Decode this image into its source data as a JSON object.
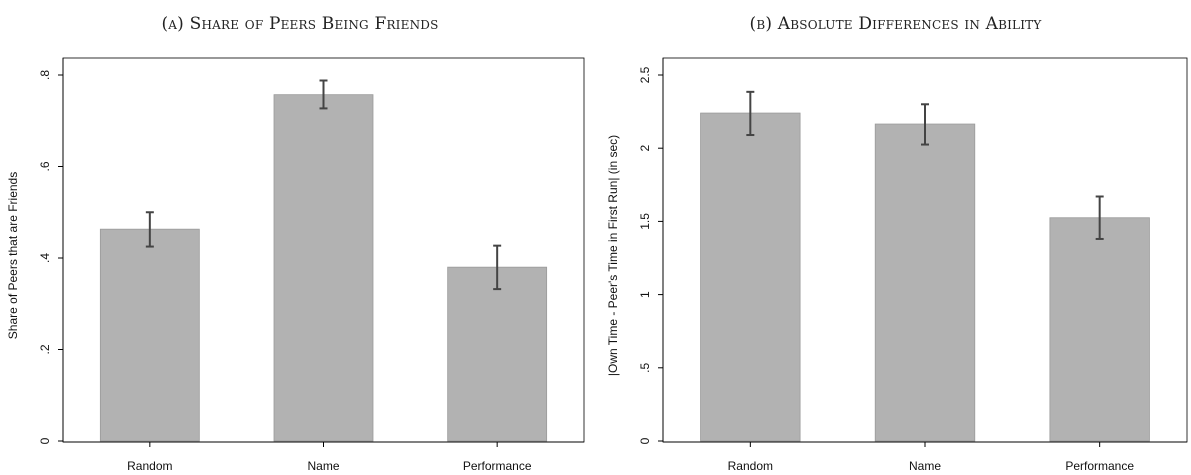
{
  "panels": {
    "a": {
      "title": "(a) Share of Peers Being Friends"
    },
    "b": {
      "title": "(b) Absolute Differences in Ability"
    }
  },
  "colors": {
    "bar": "#b2b2b2",
    "bar_edge": "#9a9a9a",
    "error_bar": "#444444",
    "axis": "#000000"
  },
  "chart_data": [
    {
      "type": "bar",
      "title": "(a) Share of Peers Being Friends",
      "categories": [
        "Random",
        "Name",
        "Performance"
      ],
      "series": [
        {
          "values": [
            0.463,
            0.757,
            0.38
          ],
          "ci_low": [
            0.425,
            0.727,
            0.332
          ],
          "ci_high": [
            0.5,
            0.788,
            0.427
          ]
        }
      ],
      "xlabel": "",
      "ylabel": "Share of Peers that are Friends",
      "ylim": [
        0,
        0.8
      ],
      "yticks": [
        0,
        0.2,
        0.4,
        0.6,
        0.8
      ],
      "ytick_labels": [
        "0",
        ".2",
        ".4",
        ".6",
        ".8"
      ],
      "grid": false,
      "error_bars": true
    },
    {
      "type": "bar",
      "title": "(b) Absolute Differences in Ability",
      "categories": [
        "Random",
        "Name",
        "Performance"
      ],
      "series": [
        {
          "values": [
            2.24,
            2.165,
            1.525
          ],
          "ci_low": [
            2.09,
            2.025,
            1.38
          ],
          "ci_high": [
            2.385,
            2.3,
            1.67
          ]
        }
      ],
      "xlabel": "",
      "ylabel": "|Own Time - Peer's Time in First Run| (in sec)",
      "ylim": [
        0,
        2.5
      ],
      "yticks": [
        0,
        0.5,
        1,
        1.5,
        2,
        2.5
      ],
      "ytick_labels": [
        "0",
        ".5",
        "1",
        "1.5",
        "2",
        "2.5"
      ],
      "grid": false,
      "error_bars": true
    }
  ]
}
